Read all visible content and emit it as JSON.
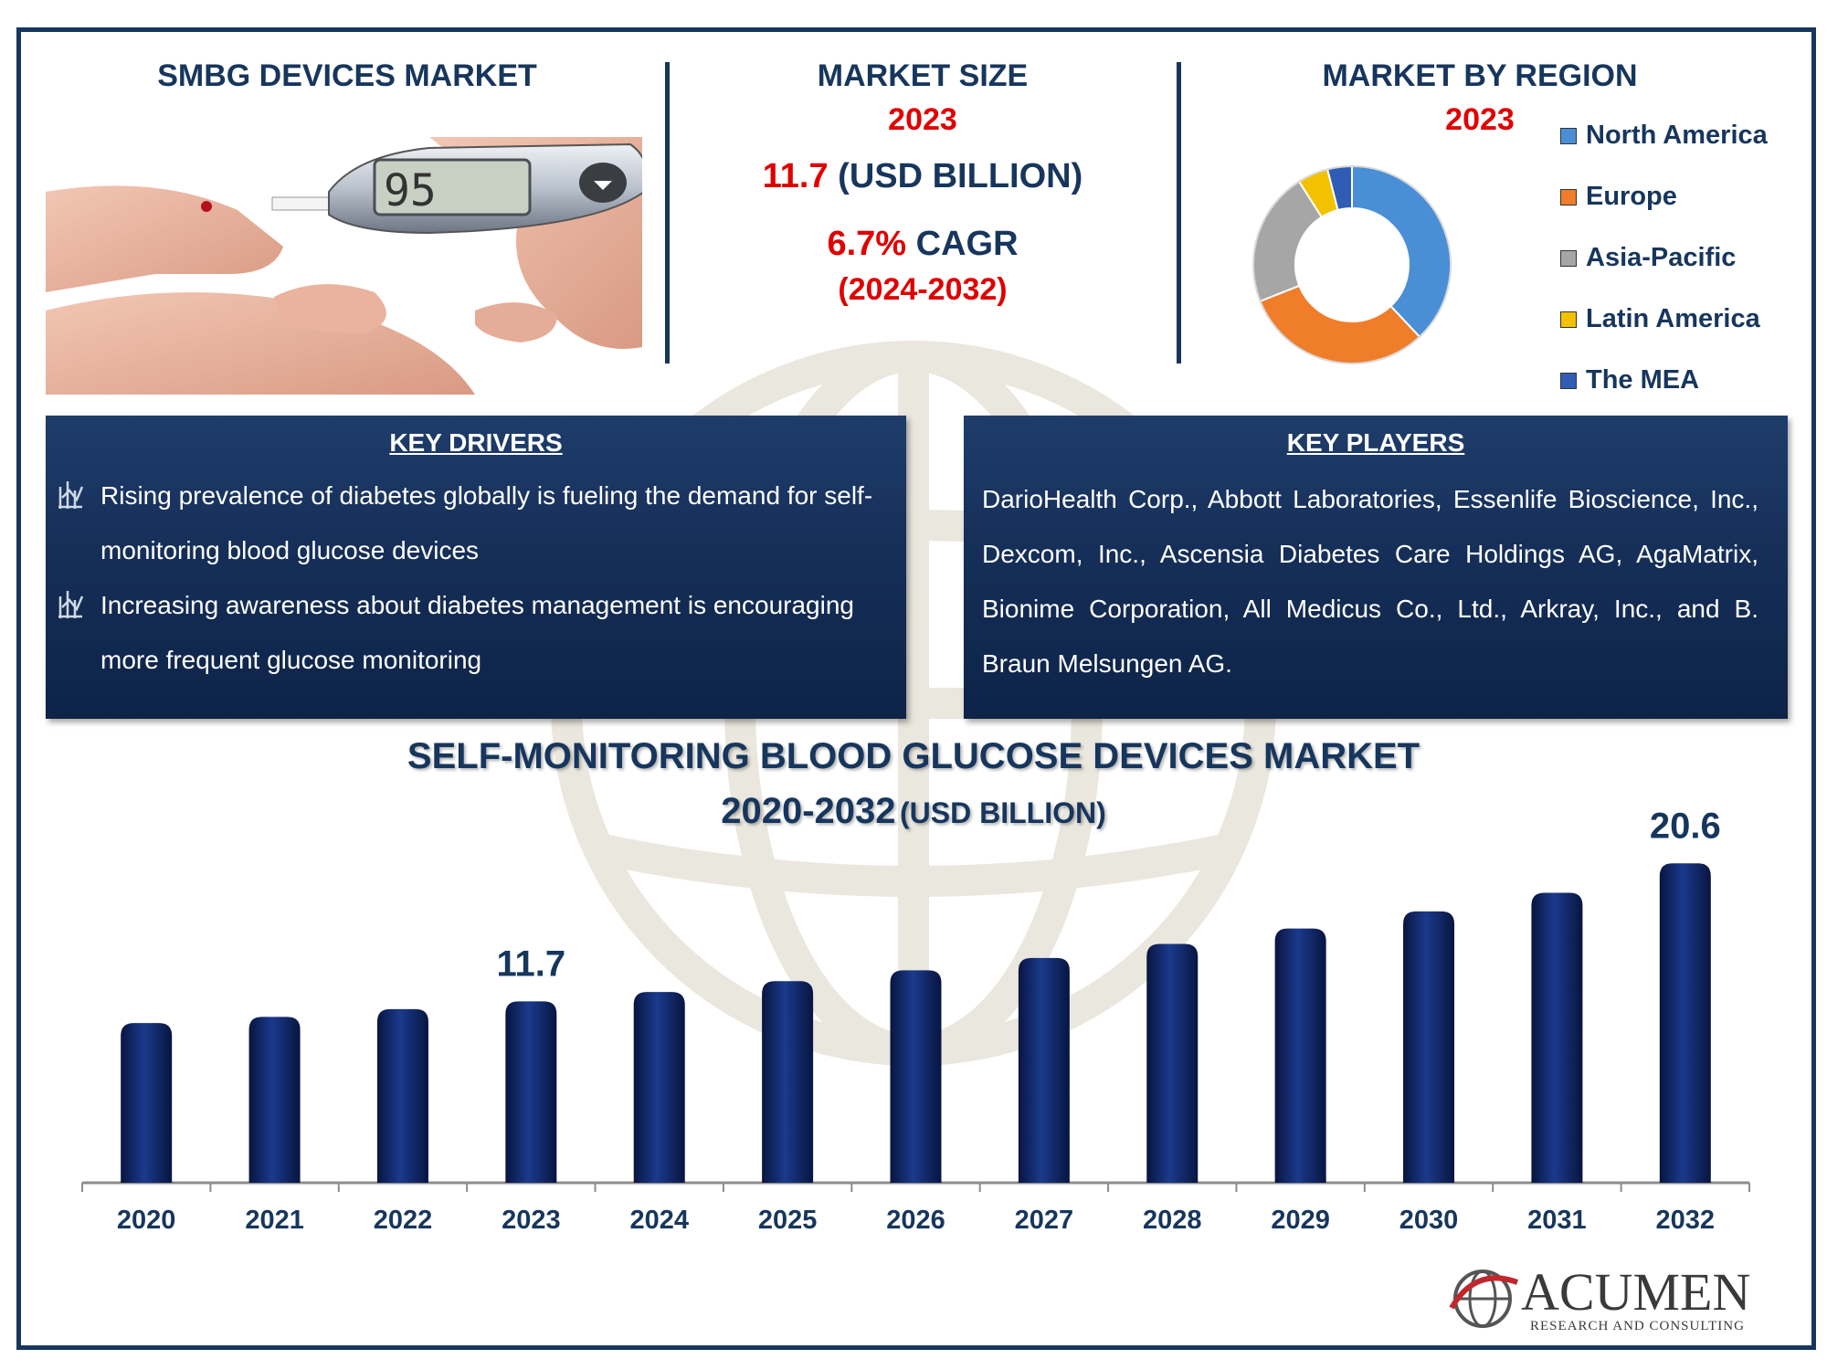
{
  "header": {
    "product_title": "SMBG DEVICES MARKET",
    "market_size": {
      "title": "MARKET SIZE",
      "year": "2023",
      "value": "11.7",
      "unit": "(USD BILLION)",
      "cagr_value": "6.7%",
      "cagr_label": "CAGR",
      "cagr_period": "(2024-2032)"
    },
    "region": {
      "title": "MARKET BY REGION",
      "year": "2023",
      "legend": [
        "North America",
        "Europe",
        "Asia-Pacific",
        "Latin America",
        "The MEA"
      ]
    }
  },
  "meter_display": "95",
  "key_drivers": {
    "title": "KEY DRIVERS",
    "items": [
      "Rising prevalence of diabetes globally is fueling the demand for self-monitoring blood glucose devices",
      "Increasing awareness about diabetes management is encouraging more frequent glucose monitoring"
    ]
  },
  "key_players": {
    "title": "KEY PLAYERS",
    "text": "DarioHealth Corp., Abbott Laboratories, Essenlife Bioscience, Inc., Dexcom, Inc., Ascensia Diabetes Care Holdings AG, AgaMatrix, Bionime Corporation, All Medicus Co., Ltd., Arkray, Inc., and B. Braun Melsungen AG."
  },
  "chart_title": {
    "line1": "SELF-MONITORING BLOOD GLUCOSE DEVICES MARKET",
    "line2_main": "2020-2032",
    "line2_unit": "(USD BILLION)"
  },
  "brand": {
    "name": "ACUMEN",
    "tagline": "RESEARCH AND CONSULTING"
  },
  "colors": {
    "navy": "#17365d",
    "bar": "#0d1f5c",
    "red": "#e00000",
    "pie": [
      "#4a8fd6",
      "#ef7d2a",
      "#a6a6a6",
      "#f2c200",
      "#2f5db5"
    ]
  },
  "chart_data": [
    {
      "type": "bar",
      "title": "SELF-MONITORING BLOOD GLUCOSE DEVICES MARKET 2020-2032 (USD BILLION)",
      "categories": [
        "2020",
        "2021",
        "2022",
        "2023",
        "2024",
        "2025",
        "2026",
        "2027",
        "2028",
        "2029",
        "2030",
        "2031",
        "2032"
      ],
      "values": [
        10.3,
        10.7,
        11.2,
        11.7,
        12.3,
        13.0,
        13.7,
        14.5,
        15.4,
        16.4,
        17.5,
        18.7,
        20.6
      ],
      "data_labels": [
        {
          "category": "2023",
          "text": "11.7"
        },
        {
          "category": "2032",
          "text": "20.6"
        }
      ],
      "ylim": [
        0,
        21.5
      ],
      "xlabel": "",
      "ylabel": "",
      "grid": false
    },
    {
      "type": "pie",
      "title": "MARKET BY REGION 2023",
      "style": "donut",
      "labels": [
        "North America",
        "Europe",
        "Asia-Pacific",
        "Latin America",
        "The MEA"
      ],
      "values": [
        38,
        31,
        22,
        5,
        4
      ]
    }
  ]
}
